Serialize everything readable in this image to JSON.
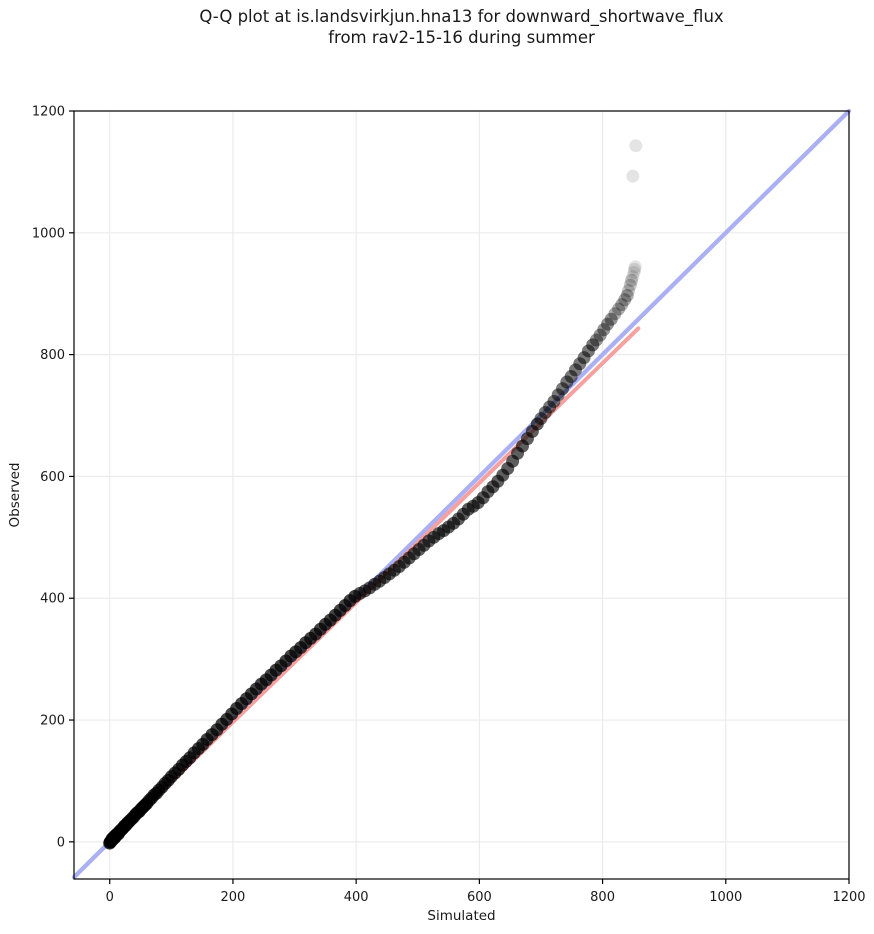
{
  "title": {
    "line1": "Q-Q plot at is.landsvirkjun.hna13 for downward_shortwave_flux",
    "line2": "from rav2-15-16 during summer"
  },
  "chart_data": {
    "type": "scatter",
    "title": "Q-Q plot at is.landsvirkjun.hna13 for downward_shortwave_flux from rav2-15-16 during summer",
    "xlabel": "Simulated",
    "ylabel": "Observed",
    "xlim": [
      -58,
      1200
    ],
    "ylim": [
      -61,
      1200
    ],
    "xticks": [
      0,
      200,
      400,
      600,
      800,
      1000,
      1200
    ],
    "yticks": [
      0,
      200,
      400,
      600,
      800,
      1000,
      1200
    ],
    "grid": true,
    "legend": "none",
    "colors": {
      "identity_line": "#aab0f2",
      "fit_line": "#f6a0a0",
      "points": "#000000",
      "grid": "#ebebeb",
      "spine": "#000000"
    },
    "identity_line": {
      "from": [
        -58,
        -58
      ],
      "to": [
        1200,
        1200
      ]
    },
    "fit_line": {
      "from": [
        0,
        0
      ],
      "to": [
        858,
        843
      ]
    },
    "points_format": "[simulated, observed, density_weight]",
    "points": [
      [
        0,
        -2,
        9
      ],
      [
        1,
        0,
        9
      ],
      [
        2,
        1,
        9
      ],
      [
        3,
        2,
        9
      ],
      [
        4,
        5,
        9
      ],
      [
        5,
        4,
        9
      ],
      [
        6,
        7,
        9
      ],
      [
        7,
        6,
        9
      ],
      [
        8,
        9,
        9
      ],
      [
        9,
        8,
        9
      ],
      [
        10,
        11,
        9
      ],
      [
        12,
        13,
        9
      ],
      [
        14,
        13,
        9
      ],
      [
        16,
        17,
        9
      ],
      [
        18,
        19,
        9
      ],
      [
        20,
        21,
        9
      ],
      [
        22,
        23,
        9
      ],
      [
        24,
        26,
        9
      ],
      [
        26,
        27,
        9
      ],
      [
        28,
        30,
        9
      ],
      [
        30,
        32,
        9
      ],
      [
        33,
        35,
        9
      ],
      [
        36,
        38,
        9
      ],
      [
        39,
        41,
        9
      ],
      [
        42,
        45,
        9
      ],
      [
        45,
        48,
        9
      ],
      [
        48,
        50,
        9
      ],
      [
        51,
        54,
        9
      ],
      [
        54,
        57,
        9
      ],
      [
        57,
        60,
        9
      ],
      [
        60,
        63,
        9
      ],
      [
        64,
        68,
        7
      ],
      [
        68,
        72,
        7
      ],
      [
        72,
        77,
        7
      ],
      [
        76,
        80,
        7
      ],
      [
        80,
        85,
        7
      ],
      [
        85,
        90,
        7
      ],
      [
        90,
        96,
        7
      ],
      [
        95,
        101,
        7
      ],
      [
        100,
        107,
        7
      ],
      [
        106,
        113,
        7
      ],
      [
        112,
        119,
        7
      ],
      [
        118,
        126,
        7
      ],
      [
        124,
        132,
        7
      ],
      [
        130,
        138,
        7
      ],
      [
        137,
        146,
        7
      ],
      [
        144,
        153,
        7
      ],
      [
        151,
        160,
        7
      ],
      [
        158,
        168,
        7
      ],
      [
        166,
        176,
        7
      ],
      [
        174,
        184,
        7
      ],
      [
        182,
        193,
        7
      ],
      [
        190,
        201,
        7
      ],
      [
        198,
        210,
        7
      ],
      [
        206,
        219,
        7
      ],
      [
        214,
        227,
        7
      ],
      [
        222,
        235,
        7
      ],
      [
        230,
        243,
        7
      ],
      [
        238,
        251,
        7
      ],
      [
        246,
        259,
        7
      ],
      [
        254,
        266,
        7
      ],
      [
        262,
        274,
        7
      ],
      [
        270,
        282,
        7
      ],
      [
        278,
        289,
        7
      ],
      [
        286,
        297,
        7
      ],
      [
        294,
        305,
        7
      ],
      [
        302,
        312,
        7
      ],
      [
        310,
        319,
        7
      ],
      [
        318,
        327,
        7
      ],
      [
        326,
        334,
        7
      ],
      [
        334,
        341,
        7
      ],
      [
        342,
        349,
        7
      ],
      [
        350,
        357,
        7
      ],
      [
        358,
        364,
        7
      ],
      [
        366,
        372,
        7
      ],
      [
        374,
        380,
        7
      ],
      [
        382,
        388,
        7
      ],
      [
        390,
        396,
        7
      ],
      [
        398,
        403,
        7
      ],
      [
        406,
        408,
        6
      ],
      [
        414,
        412,
        6
      ],
      [
        422,
        417,
        6
      ],
      [
        430,
        423,
        6
      ],
      [
        438,
        428,
        6
      ],
      [
        446,
        434,
        6
      ],
      [
        454,
        440,
        6
      ],
      [
        462,
        446,
        6
      ],
      [
        470,
        452,
        6
      ],
      [
        478,
        459,
        6
      ],
      [
        486,
        466,
        6
      ],
      [
        494,
        473,
        6
      ],
      [
        502,
        480,
        6
      ],
      [
        510,
        487,
        6
      ],
      [
        518,
        494,
        6
      ],
      [
        526,
        500,
        6
      ],
      [
        534,
        506,
        6
      ],
      [
        542,
        511,
        6
      ],
      [
        550,
        517,
        6
      ],
      [
        558,
        523,
        6
      ],
      [
        566,
        530,
        6
      ],
      [
        574,
        538,
        6
      ],
      [
        582,
        546,
        6
      ],
      [
        590,
        551,
        6
      ],
      [
        598,
        557,
        6
      ],
      [
        606,
        565,
        6
      ],
      [
        614,
        575,
        6
      ],
      [
        622,
        583,
        6
      ],
      [
        630,
        592,
        6
      ],
      [
        638,
        602,
        6
      ],
      [
        646,
        613,
        6
      ],
      [
        654,
        625,
        6
      ],
      [
        662,
        638,
        6
      ],
      [
        670,
        650,
        6
      ],
      [
        678,
        662,
        6
      ],
      [
        686,
        674,
        6
      ],
      [
        694,
        686,
        6
      ],
      [
        700,
        695,
        5
      ],
      [
        707,
        705,
        5
      ],
      [
        714,
        714,
        5
      ],
      [
        721,
        723,
        5
      ],
      [
        728,
        734,
        5
      ],
      [
        735,
        744,
        5
      ],
      [
        742,
        755,
        5
      ],
      [
        749,
        764,
        5
      ],
      [
        756,
        775,
        5
      ],
      [
        763,
        785,
        5
      ],
      [
        770,
        795,
        5
      ],
      [
        777,
        806,
        5
      ],
      [
        784,
        816,
        5
      ],
      [
        790,
        824,
        4
      ],
      [
        796,
        832,
        4
      ],
      [
        802,
        841,
        4
      ],
      [
        808,
        850,
        4
      ],
      [
        814,
        858,
        4
      ],
      [
        820,
        867,
        3
      ],
      [
        826,
        875,
        3
      ],
      [
        831,
        882,
        3
      ],
      [
        836,
        890,
        3
      ],
      [
        840,
        897,
        3
      ],
      [
        842,
        905,
        2
      ],
      [
        845,
        914,
        2
      ],
      [
        847,
        922,
        2
      ],
      [
        849,
        928,
        1
      ],
      [
        851,
        935,
        1
      ],
      [
        852,
        940,
        1
      ],
      [
        853,
        944,
        1
      ],
      [
        849,
        1093,
        1
      ],
      [
        854,
        1143,
        1
      ]
    ]
  }
}
